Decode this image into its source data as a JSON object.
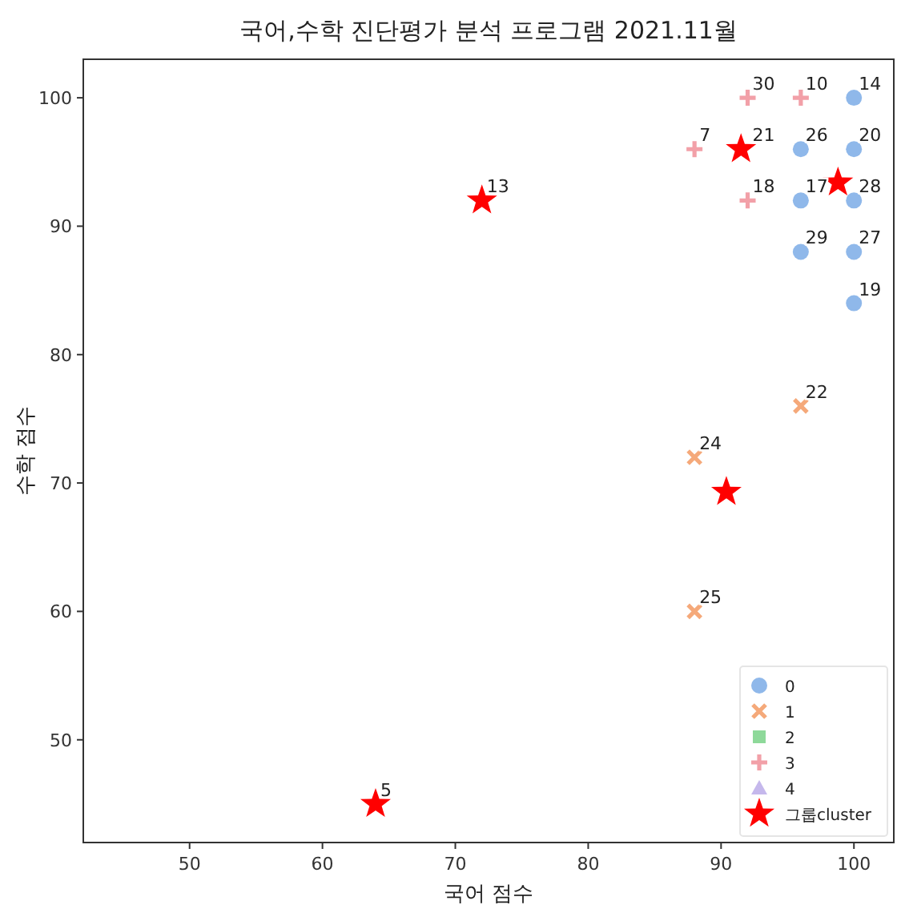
{
  "chart_data": {
    "type": "scatter",
    "title": "국어,수학 진단평가 분석 프로그램 2021.11월",
    "xlabel": "국어 점수",
    "ylabel": "수학 점수",
    "xlim": [
      42,
      103
    ],
    "ylim": [
      42,
      103
    ],
    "xticks": [
      50,
      60,
      70,
      80,
      90,
      100
    ],
    "yticks": [
      50,
      60,
      70,
      80,
      90,
      100
    ],
    "grid": false,
    "legend": "bottom right",
    "series": [
      {
        "name": "0",
        "color": "#8fb8ea",
        "marker": "circle",
        "x": [
          100,
          96,
          100,
          96,
          100,
          96,
          100,
          100
        ],
        "values": [
          100,
          96,
          96,
          92,
          92,
          88,
          88,
          84
        ]
      },
      {
        "name": "1",
        "color": "#f5a97a",
        "marker": "cross",
        "x": [
          96,
          88,
          88
        ],
        "values": [
          76,
          72,
          60
        ]
      },
      {
        "name": "2",
        "color": "#8ed99a",
        "marker": "square"
      },
      {
        "name": "3",
        "color": "#f2a0a8",
        "marker": "plus",
        "x": [
          92,
          96,
          88,
          null,
          92
        ],
        "values": [
          100,
          100,
          96,
          null,
          92
        ]
      },
      {
        "name": "4",
        "color": "#c5b8ec",
        "marker": "triangle"
      },
      {
        "name": "그룹cluster",
        "color": "#ff0000",
        "marker": "star",
        "x": [
          98.8,
          90.4,
          72,
          91.5,
          64
        ],
        "values": [
          93.4,
          69.3,
          92,
          96,
          45
        ]
      }
    ],
    "annotations": [
      {
        "text": "14",
        "x": 100,
        "y": 100
      },
      {
        "text": "26",
        "x": 96,
        "y": 96
      },
      {
        "text": "20",
        "x": 100,
        "y": 96
      },
      {
        "text": "17",
        "x": 96,
        "y": 92
      },
      {
        "text": "28",
        "x": 100,
        "y": 92
      },
      {
        "text": "29",
        "x": 96,
        "y": 88
      },
      {
        "text": "27",
        "x": 100,
        "y": 88
      },
      {
        "text": "19",
        "x": 100,
        "y": 84
      },
      {
        "text": "22",
        "x": 96,
        "y": 76
      },
      {
        "text": "24",
        "x": 88,
        "y": 72
      },
      {
        "text": "25",
        "x": 88,
        "y": 60
      },
      {
        "text": "30",
        "x": 92,
        "y": 100
      },
      {
        "text": "10",
        "x": 96,
        "y": 100
      },
      {
        "text": "7",
        "x": 88,
        "y": 96
      },
      {
        "text": "21",
        "x": 92,
        "y": 96
      },
      {
        "text": "18",
        "x": 92,
        "y": 92
      },
      {
        "text": "13",
        "x": 72,
        "y": 92
      },
      {
        "text": "5",
        "x": 64,
        "y": 45
      }
    ]
  }
}
